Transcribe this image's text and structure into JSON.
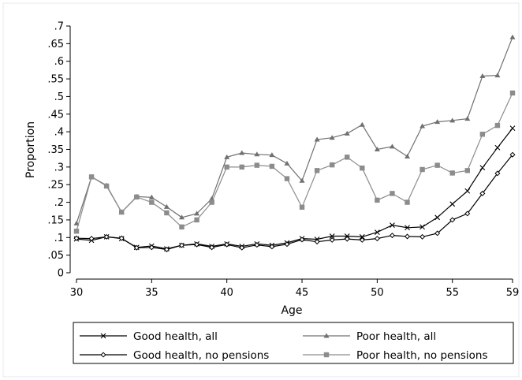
{
  "chart_data": {
    "type": "line",
    "xlabel": "Age",
    "ylabel": "Proportion",
    "xlim": [
      30,
      59
    ],
    "ylim": [
      0,
      0.7
    ],
    "xticks": [
      30,
      35,
      40,
      45,
      50,
      55,
      59
    ],
    "xtick_labels": [
      "30",
      "35",
      "40",
      "45",
      "50",
      "55",
      "59"
    ],
    "yticks": [
      0,
      0.05,
      0.1,
      0.15,
      0.2,
      0.25,
      0.3,
      0.35,
      0.4,
      0.45,
      0.5,
      0.55,
      0.6,
      0.65,
      0.7
    ],
    "ytick_labels": [
      "0",
      ".05",
      ".1",
      ".15",
      ".2",
      ".25",
      ".3",
      ".35",
      ".4",
      ".45",
      ".5",
      ".55",
      ".6",
      ".65",
      ".7"
    ],
    "grid": false,
    "legend_position": "bottom",
    "x": [
      30,
      31,
      32,
      33,
      34,
      35,
      36,
      37,
      38,
      39,
      40,
      41,
      42,
      43,
      44,
      45,
      46,
      47,
      48,
      49,
      50,
      51,
      52,
      53,
      54,
      55,
      56,
      57,
      58,
      59
    ],
    "series": [
      {
        "name": "Good health, all",
        "marker": "x",
        "color": "#000000",
        "values": [
          0.096,
          0.092,
          0.102,
          0.097,
          0.072,
          0.076,
          0.068,
          0.078,
          0.082,
          0.075,
          0.082,
          0.075,
          0.082,
          0.078,
          0.085,
          0.097,
          0.095,
          0.104,
          0.104,
          0.102,
          0.115,
          0.135,
          0.128,
          0.13,
          0.157,
          0.195,
          0.232,
          0.298,
          0.355,
          0.41
        ]
      },
      {
        "name": "Poor health, all",
        "marker": "triangle",
        "color": "#707070",
        "values": [
          0.14,
          0.272,
          0.248,
          0.172,
          0.216,
          0.214,
          0.187,
          0.157,
          0.168,
          0.21,
          0.328,
          0.34,
          0.336,
          0.334,
          0.31,
          0.261,
          0.378,
          0.383,
          0.395,
          0.42,
          0.35,
          0.358,
          0.33,
          0.416,
          0.428,
          0.432,
          0.437,
          0.558,
          0.56,
          0.668
        ]
      },
      {
        "name": "Good health, no pensions",
        "marker": "diamond",
        "color": "#000000",
        "values": [
          0.098,
          0.097,
          0.102,
          0.098,
          0.071,
          0.072,
          0.066,
          0.078,
          0.08,
          0.072,
          0.08,
          0.071,
          0.079,
          0.074,
          0.081,
          0.094,
          0.088,
          0.093,
          0.096,
          0.093,
          0.097,
          0.106,
          0.103,
          0.102,
          0.112,
          0.15,
          0.168,
          0.225,
          0.282,
          0.335
        ]
      },
      {
        "name": "Poor health, no pensions",
        "marker": "square",
        "color": "#8c8c8c",
        "values": [
          0.118,
          0.272,
          0.246,
          0.172,
          0.215,
          0.2,
          0.17,
          0.13,
          0.15,
          0.2,
          0.3,
          0.3,
          0.305,
          0.302,
          0.267,
          0.186,
          0.29,
          0.306,
          0.328,
          0.297,
          0.206,
          0.225,
          0.2,
          0.293,
          0.305,
          0.283,
          0.29,
          0.393,
          0.418,
          0.51
        ]
      }
    ],
    "legend_order": [
      0,
      1,
      2,
      3
    ]
  }
}
